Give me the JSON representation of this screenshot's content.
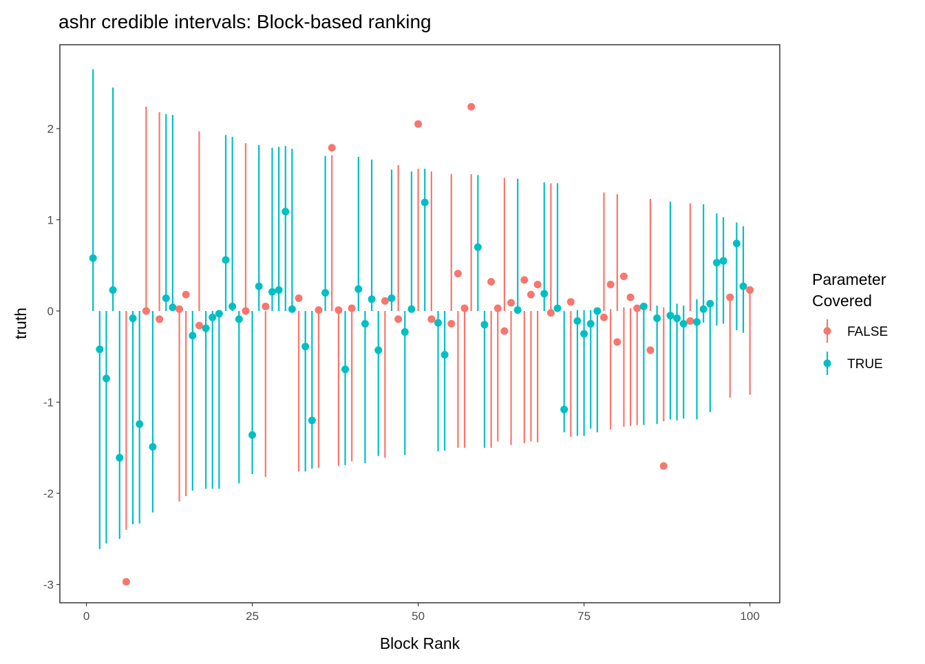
{
  "chart_data": {
    "type": "scatter",
    "title": "ashr credible intervals: Block-based ranking",
    "xlabel": "Block Rank",
    "ylabel": "truth",
    "xlim": [
      -4,
      104.5
    ],
    "ylim": [
      -3.2,
      2.92
    ],
    "x_ticks": [
      0,
      25,
      50,
      75,
      100
    ],
    "y_ticks": [
      -3,
      -2,
      -1,
      0,
      1,
      2
    ],
    "grid": false,
    "legend": {
      "title_line1": "Parameter",
      "title_line2": "Covered",
      "placement": "right",
      "entries": [
        {
          "label": "FALSE",
          "color": "#F8766D"
        },
        {
          "label": "TRUE",
          "color": "#00BFC4"
        }
      ]
    },
    "columns": [
      "rank",
      "truth",
      "lower",
      "upper",
      "covered"
    ],
    "points": [
      [
        1,
        0.58,
        0,
        2.65,
        true
      ],
      [
        2,
        -0.42,
        -2.61,
        0,
        true
      ],
      [
        3,
        -0.74,
        -2.55,
        0,
        true
      ],
      [
        4,
        0.23,
        0,
        2.45,
        true
      ],
      [
        5,
        -1.61,
        -2.5,
        0,
        true
      ],
      [
        6,
        -2.97,
        -2.4,
        0,
        false
      ],
      [
        7,
        -0.08,
        -2.34,
        0,
        true
      ],
      [
        8,
        -1.24,
        -2.33,
        0,
        true
      ],
      [
        9,
        0.0,
        0,
        2.24,
        false
      ],
      [
        10,
        -1.49,
        -2.21,
        0,
        true
      ],
      [
        11,
        -0.09,
        0,
        2.18,
        false
      ],
      [
        12,
        0.14,
        0,
        2.16,
        true
      ],
      [
        13,
        0.04,
        0,
        2.15,
        true
      ],
      [
        14,
        0.02,
        -2.09,
        0,
        false
      ],
      [
        15,
        0.18,
        -2.03,
        0,
        false
      ],
      [
        16,
        -0.27,
        -1.97,
        0,
        true
      ],
      [
        17,
        -0.16,
        0,
        1.97,
        false
      ],
      [
        18,
        -0.19,
        -1.95,
        0,
        true
      ],
      [
        19,
        -0.07,
        -1.95,
        0,
        true
      ],
      [
        20,
        -0.03,
        -1.95,
        0,
        true
      ],
      [
        21,
        0.56,
        0,
        1.93,
        true
      ],
      [
        22,
        0.05,
        0,
        1.91,
        true
      ],
      [
        23,
        -0.09,
        -1.89,
        0,
        true
      ],
      [
        24,
        0.0,
        0,
        1.84,
        false
      ],
      [
        25,
        -1.36,
        -1.79,
        0,
        true
      ],
      [
        26,
        0.27,
        0,
        1.82,
        true
      ],
      [
        27,
        0.05,
        -1.82,
        0,
        false
      ],
      [
        28,
        0.21,
        0,
        1.79,
        true
      ],
      [
        29,
        0.23,
        0,
        1.8,
        true
      ],
      [
        30,
        1.09,
        0,
        1.81,
        true
      ],
      [
        31,
        0.02,
        0,
        1.78,
        true
      ],
      [
        32,
        0.14,
        -1.76,
        0,
        false
      ],
      [
        33,
        -0.39,
        -1.76,
        0,
        true
      ],
      [
        34,
        -1.2,
        -1.73,
        0,
        true
      ],
      [
        35,
        0.01,
        -1.72,
        0,
        false
      ],
      [
        36,
        0.2,
        0,
        1.7,
        true
      ],
      [
        37,
        1.79,
        0,
        1.71,
        false
      ],
      [
        38,
        0.01,
        -1.7,
        0,
        false
      ],
      [
        39,
        -0.64,
        -1.69,
        0,
        true
      ],
      [
        40,
        0.03,
        -1.65,
        0,
        false
      ],
      [
        41,
        0.24,
        0,
        1.69,
        true
      ],
      [
        42,
        -0.14,
        -1.67,
        0,
        true
      ],
      [
        43,
        0.13,
        0,
        1.66,
        true
      ],
      [
        44,
        -0.43,
        -1.59,
        0,
        true
      ],
      [
        45,
        0.11,
        -1.61,
        0,
        false
      ],
      [
        46,
        0.14,
        0,
        1.55,
        true
      ],
      [
        47,
        -0.09,
        0,
        1.6,
        false
      ],
      [
        48,
        -0.23,
        -1.58,
        0,
        true
      ],
      [
        49,
        0.02,
        0,
        1.53,
        true
      ],
      [
        50,
        2.05,
        0,
        1.56,
        false
      ],
      [
        51,
        1.19,
        0,
        1.56,
        true
      ],
      [
        52,
        -0.09,
        0,
        1.53,
        false
      ],
      [
        53,
        -0.13,
        -1.54,
        0,
        true
      ],
      [
        54,
        -0.48,
        -1.53,
        0,
        true
      ],
      [
        55,
        -0.14,
        0,
        1.5,
        false
      ],
      [
        56,
        0.41,
        -1.5,
        0,
        false
      ],
      [
        57,
        0.03,
        -1.5,
        0,
        false
      ],
      [
        58,
        2.24,
        0,
        1.5,
        false
      ],
      [
        59,
        0.7,
        0,
        1.49,
        true
      ],
      [
        60,
        -0.15,
        -1.5,
        0,
        true
      ],
      [
        61,
        0.32,
        -1.5,
        0,
        false
      ],
      [
        62,
        0.03,
        -1.43,
        0,
        false
      ],
      [
        63,
        -0.22,
        0,
        1.46,
        false
      ],
      [
        64,
        0.09,
        -1.47,
        0,
        false
      ],
      [
        65,
        0.01,
        0,
        1.45,
        true
      ],
      [
        66,
        0.34,
        -1.45,
        0,
        false
      ],
      [
        67,
        0.18,
        -1.43,
        0,
        false
      ],
      [
        68,
        0.29,
        -1.44,
        0,
        false
      ],
      [
        69,
        0.19,
        0,
        1.41,
        true
      ],
      [
        70,
        -0.02,
        0,
        1.4,
        false
      ],
      [
        71,
        0.03,
        0,
        1.4,
        true
      ],
      [
        72,
        -1.08,
        -1.33,
        0,
        true
      ],
      [
        73,
        0.1,
        -1.38,
        0,
        false
      ],
      [
        74,
        -0.11,
        -1.37,
        0.01,
        true
      ],
      [
        75,
        -0.25,
        -1.37,
        0.01,
        true
      ],
      [
        76,
        -0.14,
        -1.29,
        0.01,
        true
      ],
      [
        77,
        0.0,
        -1.33,
        0.01,
        true
      ],
      [
        78,
        -0.07,
        0,
        1.3,
        false
      ],
      [
        79,
        0.29,
        -1.3,
        0.02,
        false
      ],
      [
        80,
        -0.34,
        0,
        1.28,
        false
      ],
      [
        81,
        0.38,
        -1.27,
        0.04,
        false
      ],
      [
        82,
        0.15,
        -1.26,
        0.03,
        false
      ],
      [
        83,
        0.03,
        -1.25,
        0.01,
        false
      ],
      [
        84,
        0.05,
        -1.25,
        0.06,
        true
      ],
      [
        85,
        -0.43,
        0,
        1.23,
        false
      ],
      [
        86,
        -0.08,
        -1.24,
        0.06,
        true
      ],
      [
        87,
        -1.7,
        -1.21,
        0.04,
        false
      ],
      [
        88,
        -0.05,
        -1.19,
        1.2,
        true
      ],
      [
        89,
        -0.08,
        -1.2,
        0.08,
        true
      ],
      [
        90,
        -0.14,
        -1.18,
        0.06,
        true
      ],
      [
        91,
        -0.11,
        0,
        1.18,
        false
      ],
      [
        92,
        -0.12,
        -1.19,
        0.13,
        true
      ],
      [
        93,
        0.02,
        -0.13,
        1.17,
        true
      ],
      [
        94,
        0.08,
        -1.11,
        0.06,
        true
      ],
      [
        95,
        0.53,
        -0.16,
        1.07,
        true
      ],
      [
        96,
        0.55,
        -0.14,
        1.03,
        true
      ],
      [
        97,
        0.15,
        -0.95,
        0.14,
        false
      ],
      [
        98,
        0.74,
        -0.21,
        0.97,
        true
      ],
      [
        99,
        0.27,
        -0.24,
        0.93,
        true
      ],
      [
        100,
        0.23,
        -0.92,
        0.23,
        false
      ]
    ]
  }
}
